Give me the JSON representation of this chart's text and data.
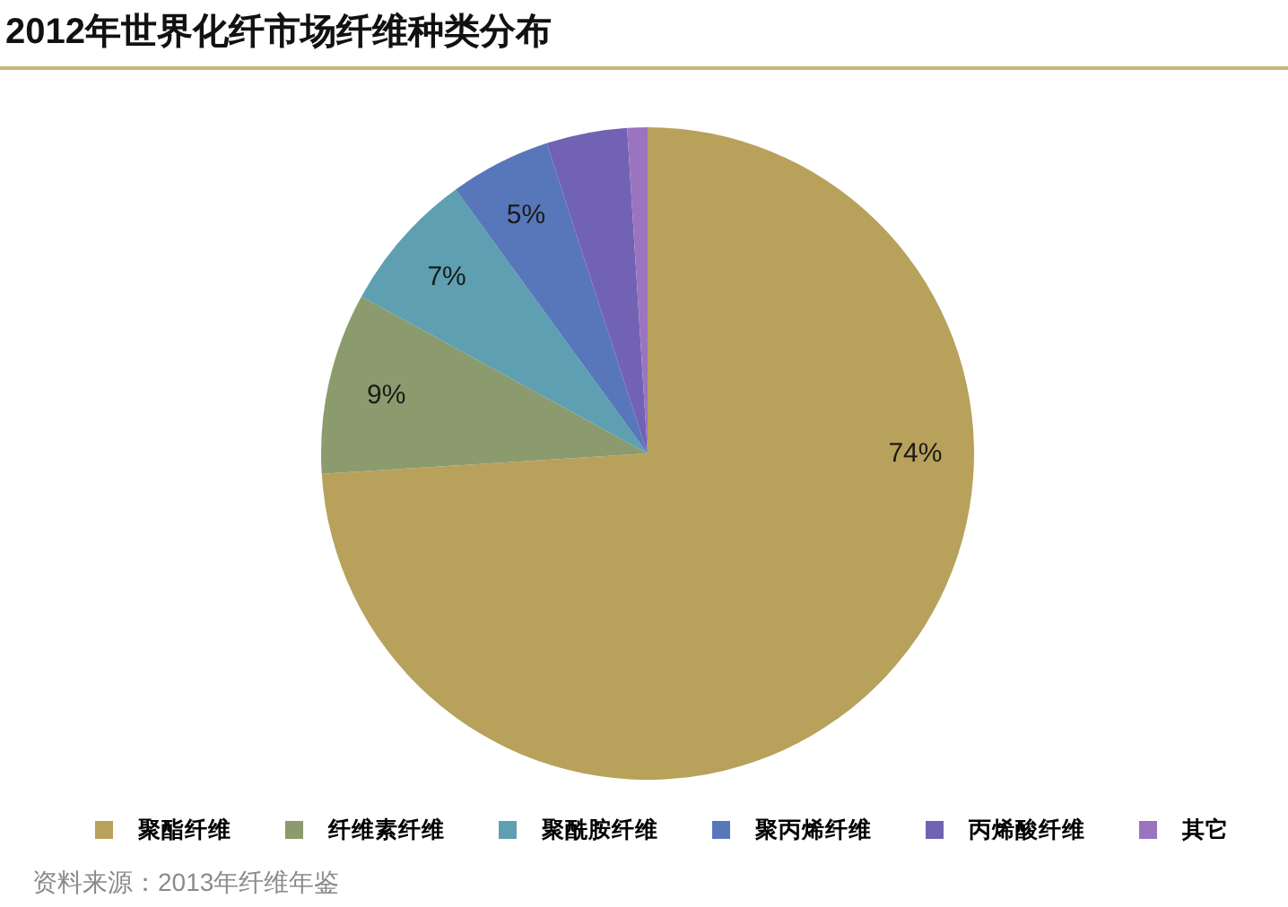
{
  "chart_data": {
    "type": "pie",
    "title": "2012年世界化纤市场纤维种类分布",
    "categories": [
      "聚酯纤维",
      "纤维素纤维",
      "聚酰胺纤维",
      "聚丙烯纤维",
      "丙烯酸纤维",
      "其它"
    ],
    "values": [
      74,
      9,
      7,
      5,
      4,
      1
    ],
    "colors": [
      "#b8a15b",
      "#8b9b6d",
      "#5e9fb1",
      "#5877ba",
      "#7262b3",
      "#9b74c0"
    ],
    "value_labels": [
      "74%",
      "9%",
      "7%",
      "5%",
      null,
      null
    ],
    "legend": "bottom",
    "annotations": [
      "资料来源：2013年纤维年鉴"
    ]
  }
}
